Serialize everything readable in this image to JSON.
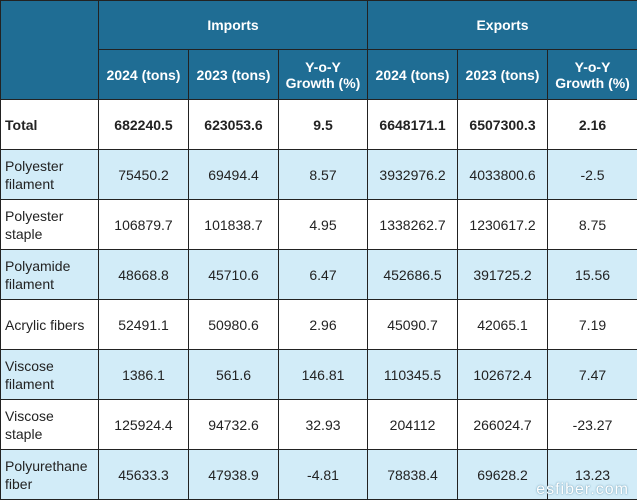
{
  "header": {
    "imports_label": "Imports",
    "exports_label": "Exports",
    "columns": [
      "2024 (tons)",
      "2023 (tons)",
      "Y-o-Y Growth (%)",
      "2024 (tons)",
      "2023 (tons)",
      "Y-o-Y Growth (%)"
    ]
  },
  "rows": [
    {
      "label": "Total",
      "imp_2024": "682240.5",
      "imp_2023": "623053.6",
      "imp_yoy": "9.5",
      "exp_2024": "6648171.1",
      "exp_2023": "6507300.3",
      "exp_yoy": "2.16"
    },
    {
      "label": "Polyester filament",
      "imp_2024": "75450.2",
      "imp_2023": "69494.4",
      "imp_yoy": "8.57",
      "exp_2024": "3932976.2",
      "exp_2023": "4033800.6",
      "exp_yoy": "-2.5"
    },
    {
      "label": "Polyester staple",
      "imp_2024": "106879.7",
      "imp_2023": "101838.7",
      "imp_yoy": "4.95",
      "exp_2024": "1338262.7",
      "exp_2023": "1230617.2",
      "exp_yoy": "8.75"
    },
    {
      "label": "Polyamide filament",
      "imp_2024": "48668.8",
      "imp_2023": "45710.6",
      "imp_yoy": "6.47",
      "exp_2024": "452686.5",
      "exp_2023": "391725.2",
      "exp_yoy": "15.56"
    },
    {
      "label": "Acrylic fibers",
      "imp_2024": "52491.1",
      "imp_2023": "50980.6",
      "imp_yoy": "2.96",
      "exp_2024": "45090.7",
      "exp_2023": "42065.1",
      "exp_yoy": "7.19"
    },
    {
      "label": "Viscose filament",
      "imp_2024": "1386.1",
      "imp_2023": "561.6",
      "imp_yoy": "146.81",
      "exp_2024": "110345.5",
      "exp_2023": "102672.4",
      "exp_yoy": "7.47"
    },
    {
      "label": "Viscose staple",
      "imp_2024": "125924.4",
      "imp_2023": "94732.6",
      "imp_yoy": "32.93",
      "exp_2024": "204112",
      "exp_2023": "266024.7",
      "exp_yoy": "-23.27"
    },
    {
      "label": "Polyurethane fiber",
      "imp_2024": "45633.3",
      "imp_2023": "47938.9",
      "imp_yoy": "-4.81",
      "exp_2024": "78838.4",
      "exp_2023": "69628.2",
      "exp_yoy": "13.23"
    }
  ],
  "watermark": "esfiber.com",
  "colors": {
    "header_bg": "#1f6d94",
    "alt_row_bg": "#d2ecf8",
    "row_bg": "#ffffff"
  }
}
